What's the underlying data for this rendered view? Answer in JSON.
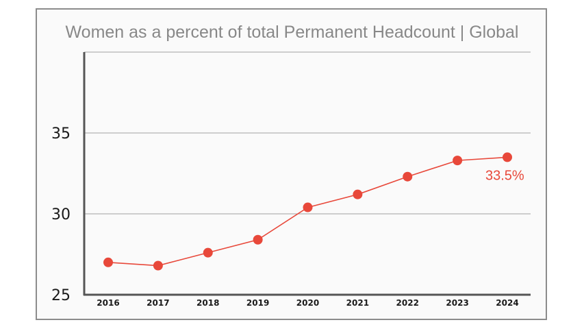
{
  "chart_data": {
    "type": "line",
    "title": "Women as a percent of total Permanent Headcount | Global",
    "xlabel": "",
    "ylabel": "",
    "categories": [
      "2016",
      "2017",
      "2018",
      "2019",
      "2020",
      "2021",
      "2022",
      "2023",
      "2024"
    ],
    "series": [
      {
        "values": [
          27.0,
          26.8,
          27.6,
          28.4,
          30.4,
          31.2,
          32.3,
          33.3,
          33.5
        ]
      }
    ],
    "ylim": [
      25,
      40
    ],
    "yticks": [
      "25",
      "30",
      "35"
    ],
    "grid": true,
    "annotations": [
      {
        "category": "2024",
        "text": "33.5%"
      }
    ],
    "colors": {
      "line": "#e8483a",
      "grid": "#a0a0a0",
      "axis": "#555555"
    }
  }
}
